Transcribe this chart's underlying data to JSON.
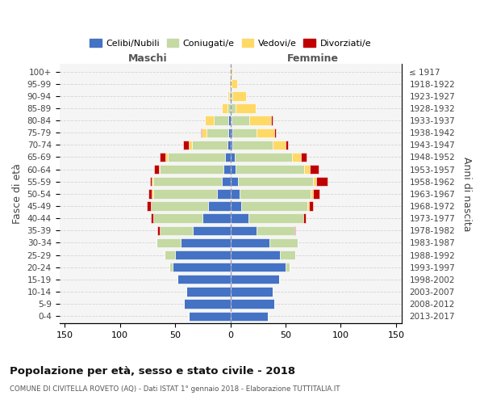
{
  "age_groups_bottom_to_top": [
    "0-4",
    "5-9",
    "10-14",
    "15-19",
    "20-24",
    "25-29",
    "30-34",
    "35-39",
    "40-44",
    "45-49",
    "50-54",
    "55-59",
    "60-64",
    "65-69",
    "70-74",
    "75-79",
    "80-84",
    "85-89",
    "90-94",
    "95-99",
    "100+"
  ],
  "birth_years_bottom_to_top": [
    "2013-2017",
    "2008-2012",
    "2003-2007",
    "1998-2002",
    "1993-1997",
    "1988-1992",
    "1983-1987",
    "1978-1982",
    "1973-1977",
    "1968-1972",
    "1963-1967",
    "1958-1962",
    "1953-1957",
    "1948-1952",
    "1943-1947",
    "1938-1942",
    "1933-1937",
    "1928-1932",
    "1923-1927",
    "1918-1922",
    "≤ 1917"
  ],
  "maschi_celibi": [
    38,
    42,
    40,
    48,
    52,
    50,
    45,
    34,
    25,
    20,
    12,
    8,
    6,
    5,
    3,
    2,
    2,
    0,
    0,
    0,
    0
  ],
  "maschi_coniugati": [
    0,
    0,
    0,
    0,
    3,
    10,
    22,
    30,
    45,
    52,
    58,
    62,
    58,
    52,
    32,
    20,
    13,
    3,
    1,
    0,
    0
  ],
  "maschi_vedovi": [
    0,
    0,
    0,
    0,
    0,
    0,
    0,
    0,
    0,
    0,
    1,
    1,
    1,
    2,
    3,
    4,
    8,
    5,
    2,
    1,
    0
  ],
  "maschi_divorziati": [
    0,
    0,
    0,
    0,
    0,
    0,
    0,
    2,
    2,
    4,
    3,
    2,
    4,
    5,
    5,
    1,
    0,
    0,
    0,
    0,
    0
  ],
  "femmine_nubili": [
    34,
    40,
    38,
    44,
    50,
    45,
    35,
    24,
    16,
    10,
    8,
    7,
    5,
    4,
    2,
    2,
    1,
    0,
    0,
    0,
    0
  ],
  "femmine_coniugate": [
    0,
    0,
    0,
    0,
    4,
    14,
    26,
    34,
    50,
    60,
    65,
    68,
    62,
    52,
    36,
    22,
    16,
    5,
    2,
    1,
    0
  ],
  "femmine_vedove": [
    0,
    0,
    0,
    0,
    0,
    0,
    0,
    0,
    0,
    1,
    2,
    3,
    5,
    8,
    12,
    16,
    20,
    18,
    12,
    5,
    2
  ],
  "femmine_divorziate": [
    0,
    0,
    0,
    0,
    0,
    0,
    0,
    1,
    2,
    4,
    6,
    10,
    8,
    5,
    2,
    1,
    1,
    0,
    0,
    0,
    0
  ],
  "colors": {
    "celibi": "#4472C4",
    "coniugati": "#C5D9A3",
    "vedovi": "#FFD966",
    "divorziati": "#C00000"
  },
  "xlim": 155,
  "title": "Popolazione per età, sesso e stato civile - 2018",
  "subtitle": "COMUNE DI CIVITELLA ROVETO (AQ) - Dati ISTAT 1° gennaio 2018 - Elaborazione TUTTITALIA.IT",
  "ylabel": "Fasce di età",
  "ylabel_right": "Anni di nascita",
  "maschi_label": "Maschi",
  "femmine_label": "Femmine",
  "legend_labels": [
    "Celibi/Nubili",
    "Coniugati/e",
    "Vedovi/e",
    "Divorziati/e"
  ],
  "xtick_vals": [
    -150,
    -100,
    -50,
    0,
    50,
    100,
    150
  ]
}
